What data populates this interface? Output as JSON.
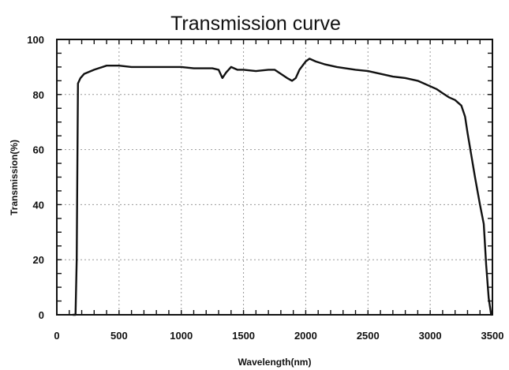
{
  "chart_data": {
    "type": "line",
    "title": "Transmission curve",
    "xlabel": "Wavelength(nm)",
    "ylabel": "Transmission(%)",
    "xlim": [
      0,
      3500
    ],
    "ylim": [
      0,
      100
    ],
    "x_ticks": [
      "0",
      "500",
      "1000",
      "1500",
      "2000",
      "2500",
      "3000",
      "3500"
    ],
    "y_ticks": [
      "0",
      "20",
      "40",
      "60",
      "80",
      "100"
    ],
    "grid": true,
    "legend": "none",
    "series": [
      {
        "color": "#111111",
        "x": [
          130,
          150,
          160,
          170,
          190,
          220,
          300,
          400,
          500,
          600,
          700,
          800,
          900,
          1000,
          1100,
          1200,
          1250,
          1300,
          1330,
          1360,
          1400,
          1450,
          1500,
          1600,
          1700,
          1750,
          1800,
          1850,
          1890,
          1920,
          1950,
          2000,
          2030,
          2080,
          2150,
          2250,
          2400,
          2500,
          2600,
          2700,
          2800,
          2900,
          3000,
          3050,
          3100,
          3150,
          3200,
          3250,
          3280,
          3300,
          3330,
          3360,
          3400,
          3430,
          3450,
          3470,
          3490
        ],
        "y": [
          0,
          0,
          20,
          84,
          86,
          87.5,
          89,
          90.5,
          90.5,
          90,
          90,
          90,
          90,
          90,
          89.5,
          89.5,
          89.5,
          89,
          86,
          88,
          90,
          89,
          89,
          88.5,
          89,
          89,
          87.5,
          86,
          85,
          86,
          89,
          92,
          93,
          92,
          91,
          90,
          89,
          88.5,
          87.5,
          86.5,
          86,
          85,
          83,
          82,
          80.5,
          79,
          78,
          76,
          72,
          66,
          58,
          50,
          40,
          33,
          18,
          6,
          0
        ]
      }
    ]
  }
}
